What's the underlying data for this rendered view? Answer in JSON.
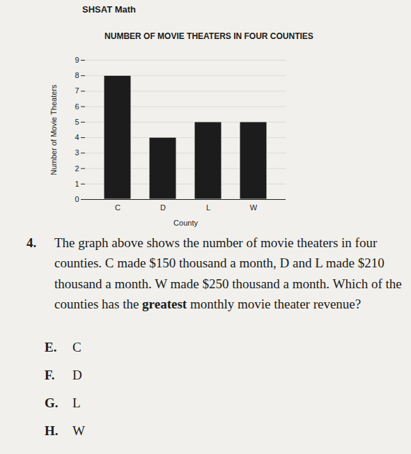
{
  "header": "SHSAT Math",
  "chart_data": {
    "type": "bar",
    "title": "NUMBER OF MOVIE THEATERS IN FOUR COUNTIES",
    "x_label": "County",
    "y_label": "Number of Movie Theaters",
    "categories": [
      "C",
      "D",
      "L",
      "W"
    ],
    "values": [
      8,
      4,
      5,
      5
    ],
    "color": "#1c1c1c",
    "ylim": [
      0,
      9
    ],
    "yticks": [
      0,
      1,
      2,
      3,
      4,
      5,
      6,
      7,
      8,
      9
    ],
    "grid": true
  },
  "question": {
    "number": "4.",
    "text_parts": [
      "The graph above shows the number of movie theaters in four counties. C made $150 thousand a month, D and L made $210 thousand a month. W made $250 thousand a month. Which of the counties has the ",
      "greatest",
      " monthly movie theater revenue?"
    ],
    "options": [
      {
        "letter": "E.",
        "text": "C"
      },
      {
        "letter": "F.",
        "text": "D"
      },
      {
        "letter": "G.",
        "text": "L"
      },
      {
        "letter": "H.",
        "text": "W"
      }
    ]
  }
}
